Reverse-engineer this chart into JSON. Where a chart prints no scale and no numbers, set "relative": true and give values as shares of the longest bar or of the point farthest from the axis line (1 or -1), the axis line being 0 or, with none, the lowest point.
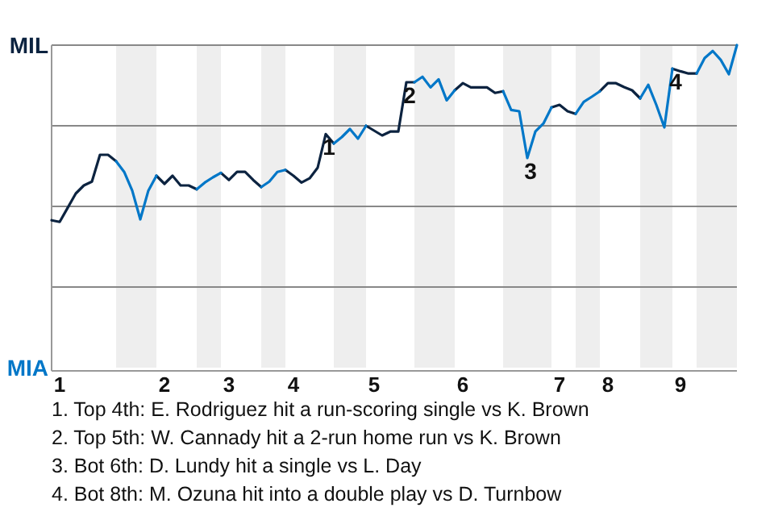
{
  "chart_data": {
    "type": "line",
    "relative": true,
    "categories": [
      null,
      "1",
      null,
      null,
      null,
      null,
      null,
      null,
      null,
      null,
      null,
      null,
      null,
      null,
      "2",
      null,
      null,
      null,
      null,
      null,
      null,
      null,
      "3",
      null,
      null,
      null,
      null,
      null,
      null,
      null,
      "4",
      null,
      null,
      null,
      null,
      null,
      null,
      null,
      null,
      null,
      "5",
      null,
      null,
      null,
      null,
      null,
      null,
      null,
      null,
      null,
      null,
      "6",
      null,
      null,
      null,
      null,
      null,
      null,
      null,
      null,
      null,
      null,
      null,
      "7",
      null,
      null,
      null,
      null,
      null,
      "8",
      null,
      null,
      null,
      null,
      null,
      null,
      null,
      null,
      "9",
      null,
      null,
      null,
      null,
      null,
      null,
      null
    ],
    "grid": "y",
    "marker": "none",
    "line_style": "solid",
    "series": [
      {
        "color": "#0c2340",
        "values": [
          0.457,
          0.452,
          0.496,
          0.54,
          0.565,
          0.577,
          0.66,
          0.66,
          0.64,
          null,
          null,
          null,
          null,
          0.595,
          0.57,
          0.595,
          0.565,
          0.565,
          0.553,
          null,
          null,
          0.604,
          0.582,
          0.607,
          0.607,
          0.582,
          0.56,
          null,
          null,
          0.613,
          0.595,
          0.574,
          0.587,
          0.62,
          0.724,
          0.695,
          null,
          null,
          null,
          0.75,
          0.735,
          0.72,
          0.732,
          0.732,
          0.885,
          0.885,
          null,
          null,
          null,
          null,
          0.86,
          0.882,
          0.869,
          0.869,
          0.869,
          0.852,
          0.857,
          null,
          null,
          null,
          null,
          null,
          0.807,
          0.815,
          0.795,
          0.787,
          null,
          null,
          0.857,
          0.882,
          0.882,
          0.87,
          0.86,
          0.835,
          null,
          null,
          null,
          0.927,
          0.919,
          0.912,
          0.912,
          null,
          null,
          null,
          null,
          null
        ]
      },
      {
        "color": "#0077c8",
        "values": [
          null,
          null,
          null,
          null,
          null,
          null,
          null,
          null,
          0.64,
          0.607,
          0.549,
          0.46,
          0.549,
          0.595,
          null,
          null,
          null,
          null,
          0.553,
          0.574,
          0.59,
          0.604,
          null,
          null,
          null,
          null,
          0.56,
          0.577,
          0.607,
          0.613,
          null,
          null,
          null,
          null,
          null,
          0.695,
          0.715,
          0.74,
          0.71,
          0.75,
          null,
          null,
          null,
          null,
          null,
          0.885,
          0.902,
          0.869,
          0.894,
          0.829,
          0.86,
          null,
          null,
          null,
          null,
          null,
          0.857,
          0.799,
          0.795,
          0.65,
          0.732,
          0.757,
          0.807,
          null,
          null,
          0.787,
          0.824,
          0.84,
          0.857,
          null,
          null,
          null,
          null,
          0.835,
          0.877,
          0.815,
          0.745,
          0.927,
          null,
          null,
          0.912,
          0.96,
          0.982,
          0.954,
          0.91,
          1
        ]
      }
    ],
    "annotations": [
      {
        "text": "1",
        "y": 0.724
      },
      {
        "text": "2",
        "y": 0.885
      },
      {
        "text": "3",
        "y": 0.65
      },
      {
        "text": "4",
        "y": 0.927
      },
      "MIL",
      "MIA",
      "1. Top 4th: E. Rodriguez hit a run-scoring single vs K. Brown",
      "2. Top 5th: W. Cannady hit a 2-run home run vs K. Brown",
      "3. Bot 6th: D. Lundy hit a single vs L. Day",
      "4. Bot 8th: M. Ozuna hit into a double play vs D. Turnbow"
    ]
  }
}
